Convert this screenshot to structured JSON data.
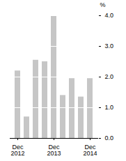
{
  "chart_data": {
    "type": "bar",
    "categories": [
      "Dec\n2012",
      null,
      null,
      null,
      "Dec\n2013",
      null,
      null,
      null,
      "Dec\n2014"
    ],
    "values": [
      2.2,
      0.7,
      2.55,
      2.5,
      4.0,
      1.4,
      1.95,
      1.35,
      1.95
    ],
    "color": "#c6c6c6",
    "y_label": "%",
    "ylim": [
      0,
      4
    ],
    "yticks": [
      0,
      1,
      2,
      3,
      4
    ],
    "grid": true
  }
}
